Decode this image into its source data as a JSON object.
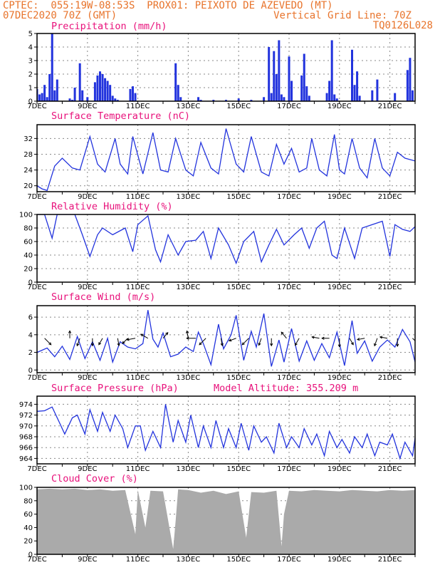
{
  "header": {
    "line1_left": "CPTEC:  055:19W-08:53S  PROX01: PEIXOTO DE AZEVEDO (MT)",
    "line2_left": "07DEC2020 70Z (GMT)",
    "line2_right": "Vertical Grid Line: 70Z",
    "line3_right": "TQ0126L028"
  },
  "x_ticks": [
    "7DEC",
    "9DEC",
    "11DEC",
    "13DEC",
    "15DEC",
    "17DEC",
    "19DEC",
    "21DEC"
  ],
  "colors": {
    "series": "#2233dd",
    "title": "#e8117b",
    "header": "#e8742c",
    "cloud": "#aaaaaa"
  },
  "chart_data": [
    {
      "type": "bar",
      "title": "Precipitation (mm/h)",
      "ylim": [
        0,
        5
      ],
      "yticks": [
        "0",
        "1",
        "2",
        "3",
        "4",
        "5"
      ],
      "x_days": [
        7.0,
        7.1,
        7.2,
        7.3,
        7.4,
        7.5,
        7.6,
        7.7,
        7.8,
        8.3,
        8.4,
        8.5,
        8.7,
        8.8,
        9.0,
        9.3,
        9.4,
        9.5,
        9.6,
        9.7,
        9.8,
        9.9,
        10.0,
        10.1,
        10.2,
        10.7,
        10.8,
        10.9,
        12.5,
        12.6,
        12.7,
        13.4,
        13.5,
        14.0,
        14.5,
        15.0,
        15.5,
        16.0,
        16.2,
        16.3,
        16.4,
        16.5,
        16.6,
        16.7,
        16.8,
        17.0,
        17.1,
        17.5,
        17.6,
        17.7,
        17.8,
        18.5,
        18.6,
        18.7,
        18.8,
        18.9,
        19.5,
        19.6,
        19.7,
        19.8,
        20.3,
        20.5,
        21.2,
        21.7,
        21.8,
        21.9
      ],
      "values": [
        0.9,
        0.5,
        0.6,
        1.2,
        0.3,
        2.0,
        5.0,
        0.8,
        1.6,
        0.2,
        0.1,
        1.0,
        2.8,
        0.8,
        0.3,
        1.4,
        1.9,
        2.2,
        2.0,
        1.7,
        1.5,
        1.2,
        0.4,
        0.2,
        0.1,
        0.9,
        1.1,
        0.6,
        2.8,
        1.2,
        0.3,
        0.3,
        0.1,
        0.1,
        0.1,
        0.2,
        0.1,
        0.3,
        4.0,
        0.6,
        3.7,
        2.0,
        4.5,
        0.5,
        0.3,
        3.3,
        1.5,
        1.9,
        3.5,
        1.1,
        0.4,
        0.6,
        1.5,
        4.5,
        0.5,
        0.2,
        3.8,
        1.2,
        2.2,
        0.4,
        0.8,
        1.6,
        0.6,
        2.3,
        3.2,
        0.8
      ]
    },
    {
      "type": "line",
      "title": "Surface Temperature (nC)",
      "ylim": [
        18.5,
        35.5
      ],
      "yticks": [
        "20",
        "24",
        "28",
        "32"
      ],
      "x_days": [
        7.0,
        7.2,
        7.4,
        7.7,
        8.0,
        8.4,
        8.7,
        9.1,
        9.4,
        9.7,
        10.1,
        10.3,
        10.6,
        10.8,
        11.2,
        11.6,
        11.9,
        12.2,
        12.5,
        12.9,
        13.2,
        13.5,
        13.9,
        14.2,
        14.5,
        14.9,
        15.2,
        15.5,
        15.9,
        16.2,
        16.5,
        16.8,
        17.1,
        17.4,
        17.7,
        17.9,
        18.2,
        18.5,
        18.8,
        19.0,
        19.2,
        19.5,
        19.8,
        20.1,
        20.4,
        20.7,
        21.0,
        21.3,
        21.6,
        22.0
      ],
      "values": [
        20.0,
        19.2,
        18.8,
        25.0,
        27.0,
        24.5,
        24.0,
        32.5,
        25.5,
        23.5,
        32.0,
        25.5,
        23.0,
        32.5,
        23.0,
        33.5,
        24.0,
        23.5,
        32.0,
        24.0,
        22.5,
        31.0,
        24.5,
        23.0,
        34.5,
        25.5,
        23.5,
        32.5,
        23.5,
        22.5,
        30.5,
        25.5,
        29.5,
        23.5,
        24.5,
        32.0,
        24.0,
        22.5,
        33.0,
        24.0,
        23.0,
        32.0,
        24.5,
        22.0,
        32.0,
        24.5,
        22.5,
        28.5,
        27.0,
        26.3
      ]
    },
    {
      "type": "line",
      "title": "Relative Humidity (%)",
      "ylim": [
        0,
        100
      ],
      "yticks": [
        "0",
        "20",
        "40",
        "60",
        "80",
        "100"
      ],
      "x_days": [
        7.0,
        7.3,
        7.6,
        7.8,
        8.0,
        8.3,
        8.5,
        8.8,
        9.1,
        9.4,
        9.6,
        10.0,
        10.5,
        10.8,
        11.0,
        11.4,
        11.7,
        11.9,
        12.2,
        12.6,
        12.9,
        13.3,
        13.6,
        13.9,
        14.2,
        14.6,
        14.9,
        15.2,
        15.6,
        15.9,
        16.2,
        16.5,
        16.8,
        17.2,
        17.5,
        17.8,
        18.1,
        18.4,
        18.7,
        18.9,
        19.2,
        19.6,
        19.9,
        20.3,
        20.7,
        21.0,
        21.2,
        21.5,
        21.8,
        22.0
      ],
      "values": [
        100,
        100,
        65,
        100,
        100,
        100,
        100,
        70,
        38,
        70,
        80,
        70,
        80,
        45,
        85,
        98,
        48,
        30,
        70,
        40,
        60,
        62,
        75,
        35,
        80,
        55,
        28,
        60,
        75,
        30,
        55,
        78,
        55,
        70,
        80,
        50,
        80,
        90,
        40,
        35,
        80,
        35,
        80,
        85,
        90,
        38,
        85,
        78,
        75,
        82
      ]
    },
    {
      "type": "line",
      "title": "Surface Wind (m/s)",
      "ylim": [
        -0.3,
        7.3
      ],
      "yticks": [
        "0",
        "2",
        "4",
        "6"
      ],
      "x_days": [
        7.0,
        7.4,
        7.7,
        8.0,
        8.3,
        8.6,
        8.9,
        9.2,
        9.5,
        9.8,
        10.0,
        10.3,
        10.6,
        10.9,
        11.2,
        11.4,
        11.6,
        11.8,
        12.0,
        12.3,
        12.6,
        12.9,
        13.2,
        13.4,
        13.6,
        13.9,
        14.2,
        14.4,
        14.7,
        14.9,
        15.2,
        15.5,
        15.7,
        16.0,
        16.3,
        16.6,
        16.8,
        17.1,
        17.4,
        17.7,
        18.0,
        18.3,
        18.6,
        18.9,
        19.2,
        19.5,
        19.7,
        20.0,
        20.3,
        20.6,
        20.9,
        21.2,
        21.5,
        21.8,
        22.0
      ],
      "values": [
        2.0,
        2.5,
        1.5,
        2.7,
        1.2,
        3.8,
        1.3,
        3.2,
        1.1,
        3.6,
        0.9,
        3.2,
        2.6,
        2.4,
        3.0,
        6.8,
        3.5,
        2.6,
        4.2,
        1.5,
        1.8,
        2.6,
        2.1,
        4.3,
        3.0,
        0.6,
        5.2,
        2.4,
        4.0,
        6.2,
        1.1,
        4.4,
        2.6,
        6.4,
        0.4,
        3.4,
        0.9,
        4.7,
        1.0,
        3.3,
        1.1,
        3.0,
        1.4,
        4.3,
        0.5,
        5.6,
        1.9,
        3.3,
        1.0,
        2.6,
        3.4,
        2.6,
        4.6,
        3.2,
        0.9
      ],
      "arrows": [
        {
          "day": 7.3,
          "speed": 1.6,
          "dir": 135
        },
        {
          "day": 8.3,
          "speed": 1.3,
          "dir": 0
        },
        {
          "day": 8.7,
          "speed": 1.4,
          "dir": 200
        },
        {
          "day": 9.2,
          "speed": 1.3,
          "dir": 180
        },
        {
          "day": 9.6,
          "speed": 1.3,
          "dir": 210
        },
        {
          "day": 10.2,
          "speed": 1.3,
          "dir": 170
        },
        {
          "day": 10.6,
          "speed": 1.3,
          "dir": 225
        },
        {
          "day": 10.9,
          "speed": 1.5,
          "dir": 260
        },
        {
          "day": 11.4,
          "speed": 1.4,
          "dir": 300
        },
        {
          "day": 12.0,
          "speed": 1.3,
          "dir": 40
        },
        {
          "day": 13.0,
          "speed": 1.3,
          "dir": 350
        },
        {
          "day": 13.3,
          "speed": 1.6,
          "dir": 270
        },
        {
          "day": 13.7,
          "speed": 1.6,
          "dir": 225
        },
        {
          "day": 14.3,
          "speed": 1.3,
          "dir": 170
        },
        {
          "day": 14.9,
          "speed": 1.3,
          "dir": 250
        },
        {
          "day": 15.4,
          "speed": 1.6,
          "dir": 225
        },
        {
          "day": 15.9,
          "speed": 1.3,
          "dir": 200
        },
        {
          "day": 16.3,
          "speed": 1.3,
          "dir": 180
        },
        {
          "day": 16.9,
          "speed": 1.4,
          "dir": 320
        },
        {
          "day": 17.4,
          "speed": 1.4,
          "dir": 210
        },
        {
          "day": 18.2,
          "speed": 1.3,
          "dir": 280
        },
        {
          "day": 18.6,
          "speed": 1.3,
          "dir": 270
        },
        {
          "day": 19.0,
          "speed": 1.5,
          "dir": 180
        },
        {
          "day": 19.4,
          "speed": 1.3,
          "dir": 150
        },
        {
          "day": 20.0,
          "speed": 1.3,
          "dir": 260
        },
        {
          "day": 20.5,
          "speed": 1.4,
          "dir": 200
        },
        {
          "day": 20.9,
          "speed": 1.3,
          "dir": 280
        },
        {
          "day": 21.3,
          "speed": 1.4,
          "dir": 180
        },
        {
          "day": 21.9,
          "speed": 1.3,
          "dir": 135
        }
      ]
    },
    {
      "type": "line",
      "title": "Surface Pressure (hPa)",
      "annotation": "Model Altitude: 355.209 m",
      "ylim": [
        963.0,
        975.5
      ],
      "yticks": [
        "964",
        "966",
        "968",
        "970",
        "972",
        "974"
      ],
      "x_days": [
        7.0,
        7.3,
        7.6,
        7.9,
        8.1,
        8.4,
        8.6,
        8.9,
        9.1,
        9.4,
        9.6,
        9.9,
        10.1,
        10.4,
        10.6,
        10.9,
        11.1,
        11.3,
        11.6,
        11.9,
        12.1,
        12.4,
        12.6,
        12.9,
        13.1,
        13.4,
        13.6,
        13.9,
        14.1,
        14.4,
        14.6,
        14.9,
        15.1,
        15.4,
        15.6,
        15.9,
        16.1,
        16.4,
        16.6,
        16.9,
        17.1,
        17.4,
        17.6,
        17.9,
        18.1,
        18.4,
        18.6,
        18.9,
        19.1,
        19.4,
        19.6,
        19.9,
        20.1,
        20.4,
        20.6,
        20.9,
        21.1,
        21.4,
        21.6,
        21.9,
        22.0
      ],
      "values": [
        972.7,
        972.8,
        973.5,
        970.5,
        968.5,
        971.5,
        972.0,
        968.5,
        973.0,
        969.0,
        972.5,
        969.0,
        972.0,
        969.5,
        966.0,
        970.0,
        970.0,
        965.5,
        969.0,
        966.0,
        974.0,
        967.0,
        971.0,
        967.0,
        972.0,
        966.0,
        970.0,
        966.0,
        971.0,
        966.0,
        969.5,
        966.0,
        970.5,
        965.5,
        970.0,
        967.0,
        968.0,
        965.0,
        970.5,
        966.0,
        968.0,
        966.0,
        969.5,
        966.5,
        968.5,
        964.5,
        969.0,
        966.0,
        967.5,
        965.0,
        968.0,
        966.0,
        968.5,
        964.5,
        967.0,
        966.5,
        968.5,
        964.0,
        967.0,
        964.5,
        967.8
      ]
    },
    {
      "type": "area",
      "title": "Cloud Cover (%)",
      "ylim": [
        0,
        100
      ],
      "yticks": [
        "0",
        "20",
        "40",
        "60",
        "80",
        "100"
      ],
      "x_days": [
        7.0,
        7.5,
        8.0,
        8.5,
        9.0,
        9.5,
        10.0,
        10.5,
        10.9,
        11.0,
        11.3,
        11.5,
        12.0,
        12.4,
        12.5,
        12.6,
        13.0,
        13.5,
        14.0,
        14.5,
        15.0,
        15.3,
        15.5,
        16.0,
        16.5,
        16.7,
        16.8,
        17.0,
        17.5,
        18.0,
        18.5,
        19.0,
        19.5,
        20.0,
        20.5,
        21.0,
        21.5,
        22.0
      ],
      "values": [
        97,
        98,
        97,
        98,
        96,
        97,
        95,
        96,
        30,
        96,
        40,
        95,
        94,
        8,
        50,
        97,
        96,
        92,
        95,
        90,
        94,
        25,
        93,
        92,
        95,
        12,
        60,
        95,
        94,
        96,
        95,
        94,
        96,
        95,
        94,
        96,
        95,
        96
      ]
    }
  ]
}
